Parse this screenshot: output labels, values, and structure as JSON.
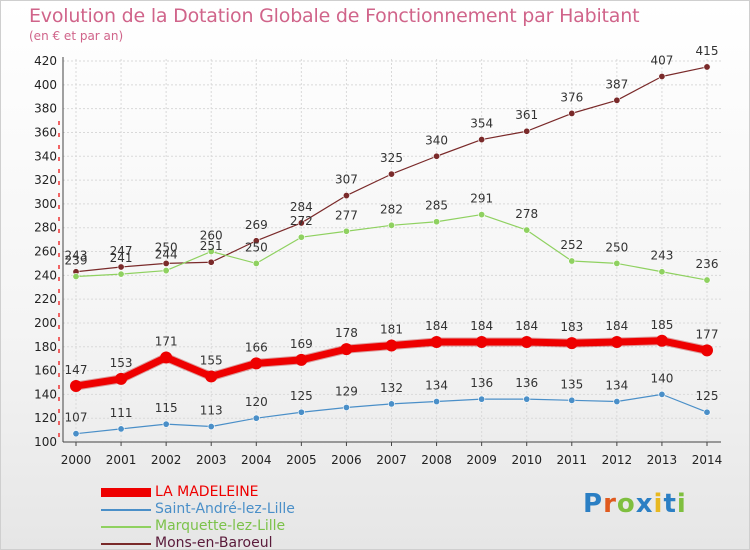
{
  "title": "Evolution de la Dotation Globale de Fonctionnement par Habitant",
  "subtitle": "(en € et par an)",
  "logo": {
    "text": "Proxiti",
    "letter_colors": [
      "#2b7fc4",
      "#e05a1e",
      "#7fbf3f",
      "#2b7fc4",
      "#e8b820",
      "#2b7fc4",
      "#7fbf3f"
    ]
  },
  "chart_data": {
    "type": "line",
    "title": "Evolution de la Dotation Globale de Fonctionnement par Habitant",
    "subtitle": "(en € et par an)",
    "xlabel": "",
    "ylabel": "",
    "x": [
      "2000",
      "2001",
      "2002",
      "2003",
      "2004",
      "2005",
      "2006",
      "2007",
      "2008",
      "2009",
      "2010",
      "2011",
      "2012",
      "2013",
      "2014"
    ],
    "ylim": [
      100,
      420
    ],
    "yticks": [
      100,
      120,
      140,
      160,
      180,
      200,
      220,
      240,
      260,
      280,
      300,
      320,
      340,
      360,
      380,
      400,
      420
    ],
    "grid": true,
    "legend": "bottom-left",
    "series": [
      {
        "name": "LA MADELEINE",
        "color": "#ee0000",
        "label_color": "#ee0000",
        "values": [
          147,
          153,
          171,
          155,
          166,
          169,
          178,
          181,
          184,
          184,
          184,
          183,
          184,
          185,
          177
        ]
      },
      {
        "name": "Saint-André-lez-Lille",
        "color": "#4a8fc8",
        "label_color": "#4a8fc8",
        "values": [
          107,
          111,
          115,
          113,
          120,
          125,
          129,
          132,
          134,
          136,
          136,
          135,
          134,
          140,
          125
        ]
      },
      {
        "name": "Marquette-lez-Lille",
        "color": "#8fd160",
        "label_color": "#7cc24a",
        "values": [
          239,
          241,
          244,
          260,
          250,
          272,
          277,
          282,
          285,
          291,
          278,
          252,
          250,
          243,
          236
        ]
      },
      {
        "name": "Mons-en-Baroeul",
        "color": "#7a2a2a",
        "label_color": "#5a1a3a",
        "values": [
          243,
          247,
          250,
          251,
          269,
          284,
          307,
          325,
          340,
          354,
          361,
          376,
          387,
          407,
          415
        ]
      }
    ]
  }
}
